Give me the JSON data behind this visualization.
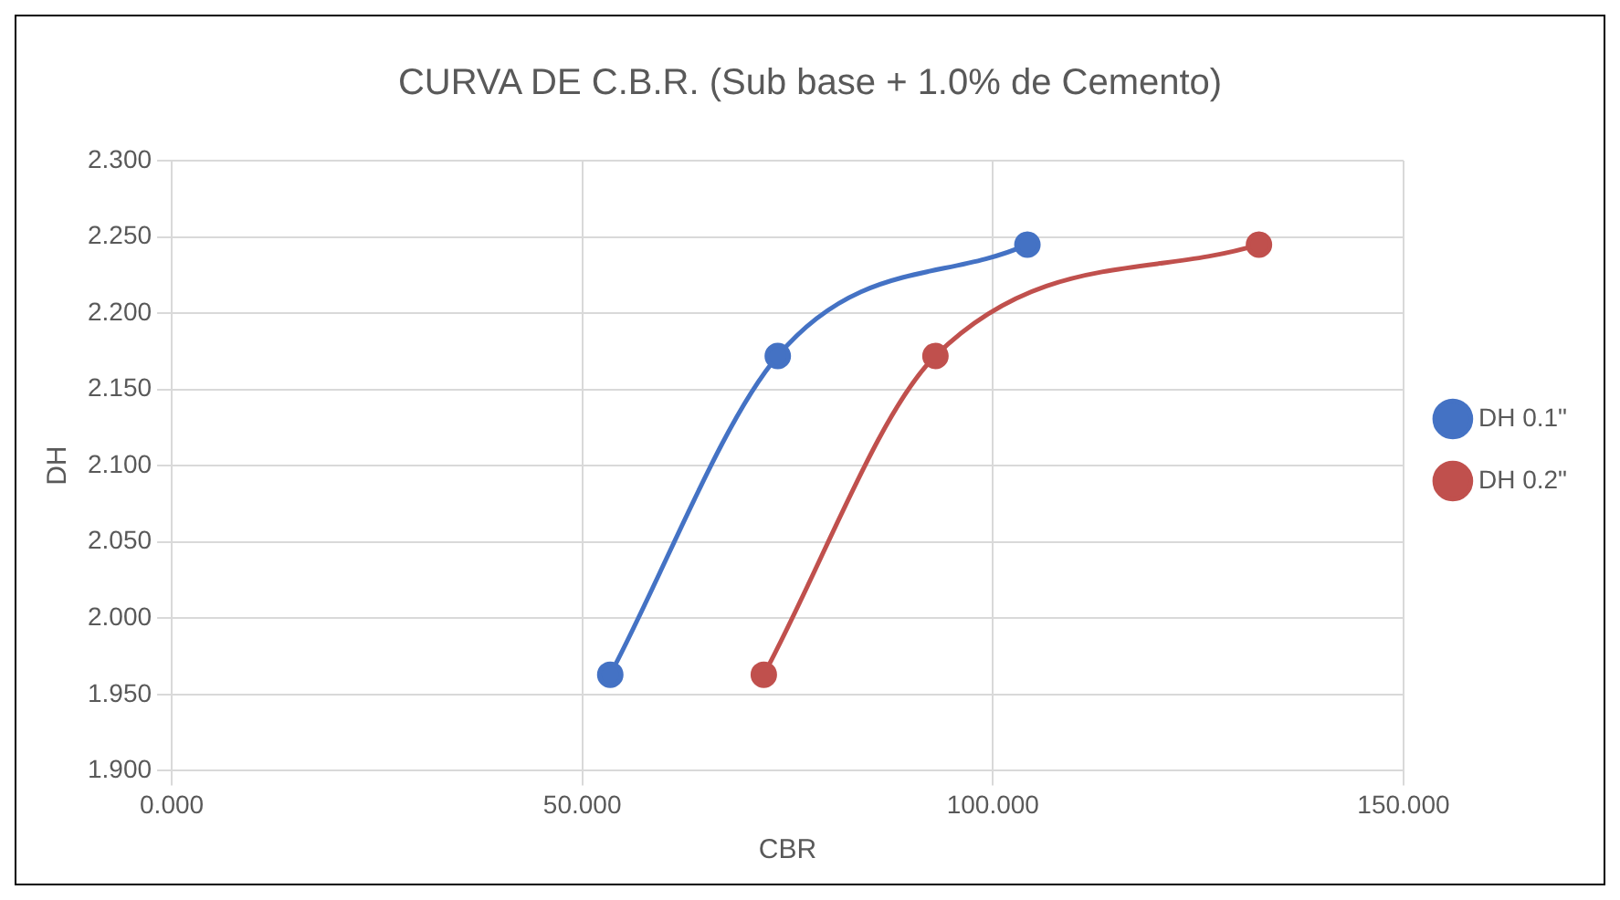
{
  "chart_data": {
    "type": "line",
    "title": "CURVA DE C.B.R. (Sub base + 1.0% de Cemento)",
    "xlabel": "CBR",
    "ylabel": "DH",
    "series": [
      {
        "name": "DH 0.1\"",
        "color": "#4472c4",
        "x": [
          53.4,
          73.8,
          104.2
        ],
        "values": [
          1.963,
          2.172,
          2.245
        ]
      },
      {
        "name": "DH 0.2\"",
        "color": "#c0504d",
        "x": [
          72.1,
          93.0,
          132.4
        ],
        "values": [
          1.963,
          2.172,
          2.245
        ]
      }
    ],
    "xlim": [
      0,
      150
    ],
    "xticks": [
      {
        "value": 0,
        "label": "0.000"
      },
      {
        "value": 50,
        "label": "50.000"
      },
      {
        "value": 100,
        "label": "100.000"
      },
      {
        "value": 150,
        "label": "150.000"
      }
    ],
    "ylim": [
      1.9,
      2.3
    ],
    "yticks": [
      {
        "value": 1.9,
        "label": "1.900"
      },
      {
        "value": 1.95,
        "label": "1.950"
      },
      {
        "value": 2.0,
        "label": "2.000"
      },
      {
        "value": 2.05,
        "label": "2.050"
      },
      {
        "value": 2.1,
        "label": "2.100"
      },
      {
        "value": 2.15,
        "label": "2.150"
      },
      {
        "value": 2.2,
        "label": "2.200"
      },
      {
        "value": 2.25,
        "label": "2.250"
      },
      {
        "value": 2.3,
        "label": "2.300"
      }
    ],
    "grid": true,
    "legend": "right",
    "marker": "circle",
    "line_style": "solid"
  }
}
